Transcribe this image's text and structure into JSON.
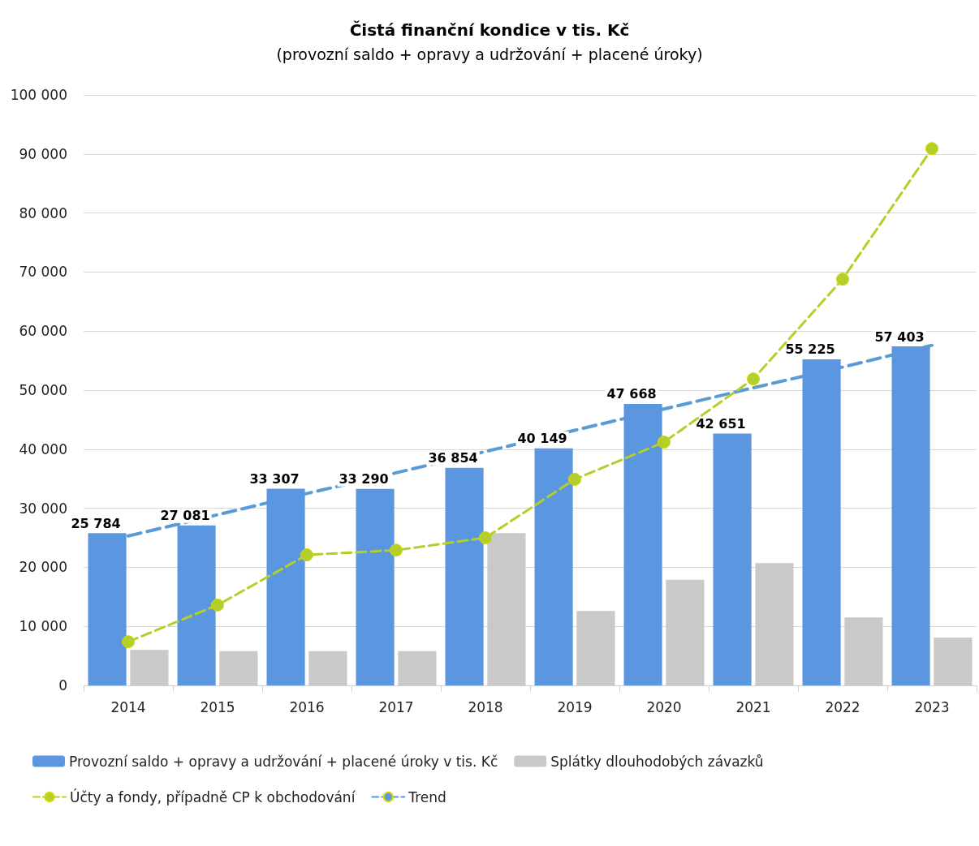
{
  "chart_data": {
    "type": "bar",
    "title": "Čistá finanční kondice v tis. Kč",
    "subtitle": "(provozní saldo + opravy a udržování + placené úroky)",
    "categories": [
      "2014",
      "2015",
      "2016",
      "2017",
      "2018",
      "2019",
      "2020",
      "2021",
      "2022",
      "2023"
    ],
    "series": [
      {
        "name": "Provozní saldo + opravy a udržování + placené úroky v tis. Kč",
        "color": "#5b97e0",
        "values": [
          25784,
          27081,
          33307,
          33290,
          36854,
          40149,
          47668,
          42651,
          55225,
          57403
        ],
        "value_labels": [
          "25 784",
          "27 081",
          "33 307",
          "33 290",
          "36 854",
          "40 149",
          "47 668",
          "42 651",
          "55 225",
          "57 403"
        ]
      },
      {
        "name": "Splátky dlouhodobých závazků",
        "color": "#c9c9c9",
        "values": [
          6000,
          5800,
          5800,
          5800,
          25800,
          12600,
          17900,
          20700,
          11500,
          8100
        ]
      },
      {
        "name": "Účty a fondy, případně CP k obchodování",
        "type": "line",
        "color": "#b5cf2a",
        "marker": "circle",
        "line_style": "dashed",
        "values": [
          7400,
          13600,
          22100,
          22900,
          25000,
          34900,
          41200,
          51900,
          68800,
          90900
        ]
      },
      {
        "name": "Trend",
        "type": "line",
        "color": "#5b9bd5",
        "marker": "none",
        "line_style": "dashed",
        "values": [
          25300,
          28900,
          32500,
          36000,
          39600,
          43200,
          46800,
          50400,
          53900,
          57600
        ]
      }
    ],
    "ylim": [
      0,
      100000
    ],
    "yticks": [
      {
        "value": 0,
        "label": "0"
      },
      {
        "value": 10000,
        "label": "10 000"
      },
      {
        "value": 20000,
        "label": "20 000"
      },
      {
        "value": 30000,
        "label": "30 000"
      },
      {
        "value": 40000,
        "label": "40 000"
      },
      {
        "value": 50000,
        "label": "50 000"
      },
      {
        "value": 60000,
        "label": "60 000"
      },
      {
        "value": 70000,
        "label": "70 000"
      },
      {
        "value": 80000,
        "label": "80 000"
      },
      {
        "value": 90000,
        "label": "90 000"
      },
      {
        "value": 100000,
        "label": "100 000"
      }
    ],
    "grid": "y",
    "legend": "bottom"
  }
}
